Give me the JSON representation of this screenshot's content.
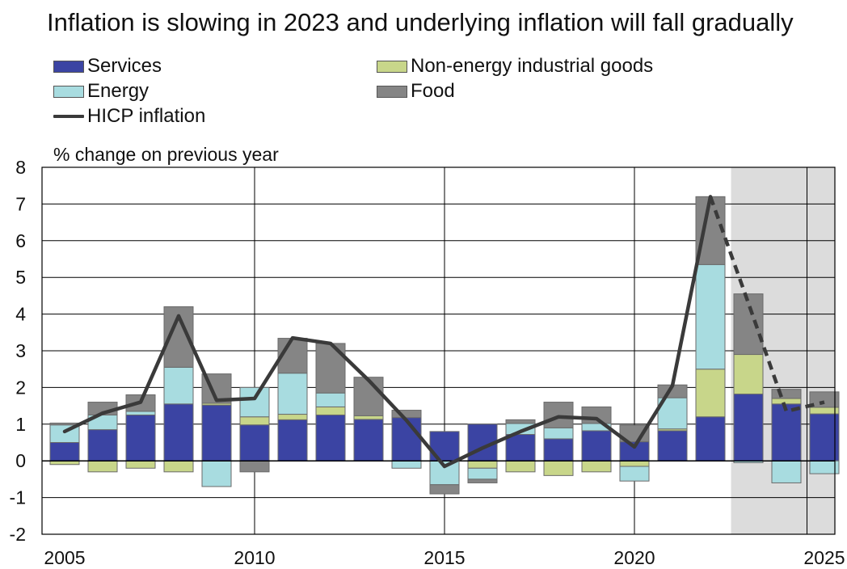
{
  "chart_data": {
    "type": "bar",
    "title": "Inflation is slowing in 2023 and underlying inflation will fall gradually",
    "ylabel": "% change on previous year",
    "xlabel": "",
    "ylim": [
      -2,
      8
    ],
    "yticks": [
      8,
      7,
      6,
      5,
      4,
      3,
      2,
      1,
      0,
      -1,
      -2
    ],
    "xticks": [
      "2005",
      "2010",
      "2015",
      "2020",
      "2025"
    ],
    "x": [
      2005,
      2006,
      2007,
      2008,
      2009,
      2010,
      2011,
      2012,
      2013,
      2014,
      2015,
      2016,
      2017,
      2018,
      2019,
      2020,
      2021,
      2022,
      2023,
      2024,
      2025
    ],
    "projection_start": 2023,
    "series": [
      {
        "name": "Services",
        "color": "#3b44a3",
        "values": [
          0.5,
          0.85,
          1.25,
          1.55,
          1.52,
          0.98,
          1.12,
          1.25,
          1.13,
          1.18,
          0.8,
          1.0,
          0.72,
          0.6,
          0.82,
          0.52,
          0.82,
          1.2,
          1.82,
          1.55,
          1.28
        ]
      },
      {
        "name": "Non-energy industrial goods",
        "color": "#c8d68a",
        "values": [
          -0.1,
          -0.3,
          -0.2,
          -0.3,
          0.05,
          0.22,
          0.15,
          0.22,
          0.1,
          0.0,
          0.0,
          -0.2,
          -0.3,
          -0.4,
          -0.3,
          -0.15,
          0.05,
          1.3,
          1.08,
          0.15,
          0.18
        ]
      },
      {
        "name": "Energy",
        "color": "#a8dce0",
        "values": [
          0.48,
          0.4,
          0.1,
          1.0,
          -0.7,
          0.8,
          1.12,
          0.38,
          0.0,
          -0.2,
          -0.65,
          -0.3,
          0.3,
          0.3,
          0.2,
          -0.4,
          0.85,
          2.85,
          -0.05,
          -0.6,
          -0.35
        ]
      },
      {
        "name": "Food",
        "color": "#858585",
        "values": [
          0.05,
          0.35,
          0.45,
          1.65,
          0.8,
          -0.3,
          0.95,
          1.35,
          1.05,
          0.2,
          -0.25,
          -0.1,
          0.1,
          0.7,
          0.45,
          0.45,
          0.35,
          1.85,
          1.65,
          0.25,
          0.42
        ]
      },
      {
        "name": "HICP inflation",
        "color": "#3a3a3a",
        "type": "line",
        "values": [
          0.8,
          1.3,
          1.6,
          3.95,
          1.65,
          1.7,
          3.35,
          3.2,
          2.2,
          1.1,
          -0.15,
          0.35,
          0.8,
          1.2,
          1.15,
          0.38,
          2.05,
          7.2,
          4.3,
          1.35,
          1.6
        ]
      }
    ]
  }
}
